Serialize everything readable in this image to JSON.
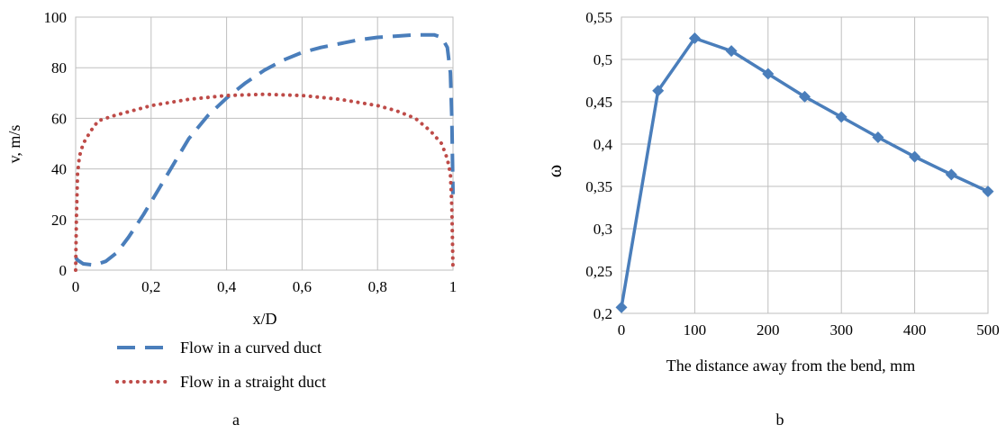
{
  "chart_data": [
    {
      "panel_label": "a",
      "type": "line",
      "xlabel": "x/D",
      "ylabel": "v, m/s",
      "xlim": [
        0,
        1
      ],
      "ylim": [
        0,
        100
      ],
      "x_ticks": [
        0,
        0.2,
        0.4,
        0.6,
        0.8,
        1
      ],
      "x_tick_labels": [
        "0",
        "0,2",
        "0,4",
        "0,6",
        "0,8",
        "1"
      ],
      "y_ticks": [
        0,
        20,
        40,
        60,
        80,
        100
      ],
      "y_tick_labels": [
        "0",
        "20",
        "40",
        "60",
        "80",
        "100"
      ],
      "grid": true,
      "legend_position": "bottom",
      "series": [
        {
          "name": "Flow in a curved duct",
          "color": "#4a7ebb",
          "style": "dashed",
          "x": [
            0,
            0.005,
            0.02,
            0.05,
            0.08,
            0.11,
            0.14,
            0.18,
            0.22,
            0.26,
            0.3,
            0.35,
            0.4,
            0.45,
            0.5,
            0.55,
            0.6,
            0.65,
            0.7,
            0.75,
            0.8,
            0.85,
            0.9,
            0.95,
            0.97,
            0.985,
            0.993,
            0.997,
            1.0
          ],
          "y": [
            5,
            4,
            2.5,
            2,
            3.5,
            7,
            13,
            22,
            32,
            42,
            52,
            61,
            68,
            74,
            79,
            83,
            86,
            88,
            89.5,
            91,
            92,
            92.5,
            93,
            93,
            92,
            88,
            78,
            60,
            30
          ]
        },
        {
          "name": "Flow in a straight duct",
          "color": "#be4b48",
          "style": "dotted",
          "x": [
            0,
            0.002,
            0.005,
            0.01,
            0.02,
            0.04,
            0.06,
            0.1,
            0.15,
            0.2,
            0.3,
            0.4,
            0.5,
            0.6,
            0.7,
            0.8,
            0.85,
            0.9,
            0.94,
            0.97,
            0.985,
            0.993,
            0.997,
            1.0
          ],
          "y": [
            0,
            20,
            38,
            45,
            50,
            55,
            59,
            61,
            63,
            65,
            67.5,
            69,
            69.5,
            69,
            67.5,
            65,
            63,
            60,
            55,
            50,
            44,
            38,
            25,
            0
          ]
        }
      ]
    },
    {
      "panel_label": "b",
      "type": "line",
      "xlabel": "The distance away from the bend, mm",
      "ylabel": "ω",
      "xlim": [
        0,
        500
      ],
      "ylim": [
        0.2,
        0.55
      ],
      "x_ticks": [
        0,
        100,
        200,
        300,
        400,
        500
      ],
      "x_tick_labels": [
        "0",
        "100",
        "200",
        "300",
        "400",
        "500"
      ],
      "y_ticks": [
        0.2,
        0.25,
        0.3,
        0.35,
        0.4,
        0.45,
        0.5,
        0.55
      ],
      "y_tick_labels": [
        "0,2",
        "0,25",
        "0,3",
        "0,35",
        "0,4",
        "0,45",
        "0,5",
        "0,55"
      ],
      "grid": true,
      "series": [
        {
          "color": "#4a7ebb",
          "marker": "diamond",
          "x": [
            0,
            50,
            100,
            150,
            200,
            250,
            300,
            350,
            400,
            450,
            500
          ],
          "y": [
            0.207,
            0.463,
            0.525,
            0.51,
            0.483,
            0.456,
            0.432,
            0.408,
            0.385,
            0.364,
            0.344
          ]
        }
      ]
    }
  ]
}
